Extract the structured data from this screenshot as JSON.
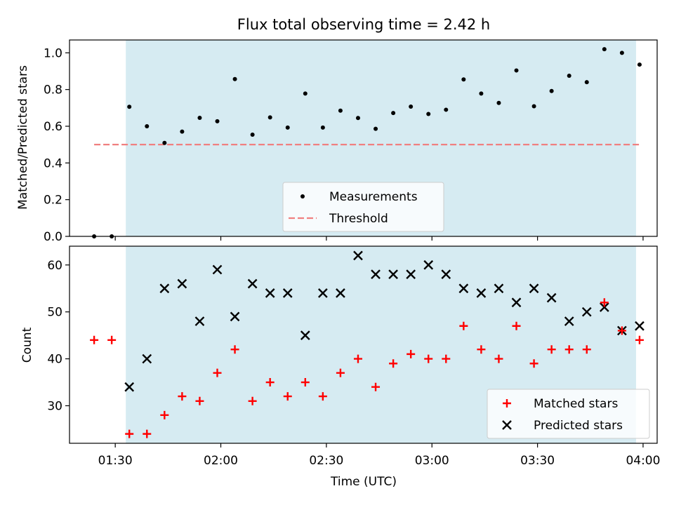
{
  "chart_data": [
    {
      "type": "scatter",
      "title": "Flux total observing time = 2.42 h",
      "xlabel": "",
      "ylabel": "Matched/Predicted stars",
      "ylim": [
        0,
        1.07
      ],
      "yticks": [
        "0.0",
        "0.2",
        "0.4",
        "0.6",
        "0.8",
        "1.0"
      ],
      "ytick_values": [
        0,
        0.2,
        0.4,
        0.6,
        0.8,
        1.0
      ],
      "shaded_interval": [
        "01:33",
        "03:58"
      ],
      "series": [
        {
          "name": "Measurements",
          "marker": "dot",
          "color": "#000000",
          "points": [
            [
              "01:24",
              0.0
            ],
            [
              "01:29",
              0.0
            ],
            [
              "01:34",
              0.706
            ],
            [
              "01:39",
              0.6
            ],
            [
              "01:44",
              0.509
            ],
            [
              "01:49",
              0.571
            ],
            [
              "01:54",
              0.646
            ],
            [
              "01:59",
              0.627
            ],
            [
              "02:04",
              0.857
            ],
            [
              "02:09",
              0.554
            ],
            [
              "02:14",
              0.648
            ],
            [
              "02:19",
              0.593
            ],
            [
              "02:24",
              0.778
            ],
            [
              "02:29",
              0.593
            ],
            [
              "02:34",
              0.685
            ],
            [
              "02:39",
              0.645
            ],
            [
              "02:44",
              0.586
            ],
            [
              "02:49",
              0.672
            ],
            [
              "02:54",
              0.707
            ],
            [
              "02:59",
              0.667
            ],
            [
              "03:04",
              0.69
            ],
            [
              "03:09",
              0.855
            ],
            [
              "03:14",
              0.778
            ],
            [
              "03:19",
              0.727
            ],
            [
              "03:24",
              0.904
            ],
            [
              "03:29",
              0.709
            ],
            [
              "03:34",
              0.792
            ],
            [
              "03:39",
              0.875
            ],
            [
              "03:44",
              0.84
            ],
            [
              "03:49",
              1.02
            ],
            [
              "03:54",
              1.0
            ],
            [
              "03:59",
              0.936
            ]
          ]
        },
        {
          "name": "Threshold",
          "type": "line",
          "style": "dashed",
          "color": "#f08080",
          "points": [
            [
              "01:24",
              0.5
            ],
            [
              "03:59",
              0.5
            ]
          ]
        }
      ],
      "legend_position": "lower center"
    },
    {
      "type": "scatter",
      "xlabel": "Time (UTC)",
      "ylabel": "Count",
      "ylim": [
        22,
        64
      ],
      "yticks": [
        "30",
        "40",
        "50",
        "60"
      ],
      "ytick_values": [
        30,
        40,
        50,
        60
      ],
      "xlim": [
        "01:17",
        "04:04"
      ],
      "xticks": [
        "01:30",
        "02:00",
        "02:30",
        "03:00",
        "03:30",
        "04:00"
      ],
      "shaded_interval": [
        "01:33",
        "03:58"
      ],
      "series": [
        {
          "name": "Matched stars",
          "marker": "plus",
          "color": "#ff0000",
          "points": [
            [
              "01:24",
              44
            ],
            [
              "01:29",
              44
            ],
            [
              "01:34",
              24
            ],
            [
              "01:39",
              24
            ],
            [
              "01:44",
              28
            ],
            [
              "01:49",
              32
            ],
            [
              "01:54",
              31
            ],
            [
              "01:59",
              37
            ],
            [
              "02:04",
              42
            ],
            [
              "02:09",
              31
            ],
            [
              "02:14",
              35
            ],
            [
              "02:19",
              32
            ],
            [
              "02:24",
              35
            ],
            [
              "02:29",
              32
            ],
            [
              "02:34",
              37
            ],
            [
              "02:39",
              40
            ],
            [
              "02:44",
              34
            ],
            [
              "02:49",
              39
            ],
            [
              "02:54",
              41
            ],
            [
              "02:59",
              40
            ],
            [
              "03:04",
              40
            ],
            [
              "03:09",
              47
            ],
            [
              "03:14",
              42
            ],
            [
              "03:19",
              40
            ],
            [
              "03:24",
              47
            ],
            [
              "03:29",
              39
            ],
            [
              "03:34",
              42
            ],
            [
              "03:39",
              42
            ],
            [
              "03:44",
              42
            ],
            [
              "03:49",
              52
            ],
            [
              "03:54",
              46
            ],
            [
              "03:59",
              44
            ]
          ]
        },
        {
          "name": "Predicted stars",
          "marker": "x",
          "color": "#000000",
          "points": [
            [
              "01:34",
              34
            ],
            [
              "01:39",
              40
            ],
            [
              "01:44",
              55
            ],
            [
              "01:49",
              56
            ],
            [
              "01:54",
              48
            ],
            [
              "01:59",
              59
            ],
            [
              "02:04",
              49
            ],
            [
              "02:09",
              56
            ],
            [
              "02:14",
              54
            ],
            [
              "02:19",
              54
            ],
            [
              "02:24",
              45
            ],
            [
              "02:29",
              54
            ],
            [
              "02:34",
              54
            ],
            [
              "02:39",
              62
            ],
            [
              "02:44",
              58
            ],
            [
              "02:49",
              58
            ],
            [
              "02:54",
              58
            ],
            [
              "02:59",
              60
            ],
            [
              "03:04",
              58
            ],
            [
              "03:09",
              55
            ],
            [
              "03:14",
              54
            ],
            [
              "03:19",
              55
            ],
            [
              "03:24",
              52
            ],
            [
              "03:29",
              55
            ],
            [
              "03:34",
              53
            ],
            [
              "03:39",
              48
            ],
            [
              "03:44",
              50
            ],
            [
              "03:49",
              51
            ],
            [
              "03:54",
              46
            ],
            [
              "03:59",
              47
            ]
          ]
        }
      ],
      "legend_position": "lower right"
    }
  ],
  "colors": {
    "shade": "#add8e6",
    "frame": "#000000"
  }
}
